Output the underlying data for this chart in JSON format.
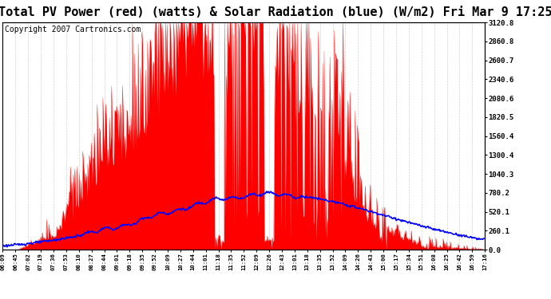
{
  "title": "Total PV Power (red) (watts) & Solar Radiation (blue) (W/m2) Fri Mar 9 17:25",
  "copyright": "Copyright 2007 Cartronics.com",
  "y_max": 3120.8,
  "y_min": 0.0,
  "y_ticks": [
    0.0,
    260.1,
    520.1,
    780.2,
    1040.3,
    1300.4,
    1560.4,
    1820.5,
    2080.6,
    2340.6,
    2600.7,
    2860.8,
    3120.8
  ],
  "x_labels": [
    "06:09",
    "06:45",
    "07:02",
    "07:19",
    "07:36",
    "07:53",
    "08:10",
    "08:27",
    "08:44",
    "09:01",
    "09:18",
    "09:35",
    "09:52",
    "10:09",
    "10:27",
    "10:44",
    "11:01",
    "11:18",
    "11:35",
    "11:52",
    "12:09",
    "12:26",
    "12:43",
    "13:01",
    "13:18",
    "13:35",
    "13:52",
    "14:09",
    "14:26",
    "14:43",
    "15:00",
    "15:17",
    "15:34",
    "15:51",
    "16:08",
    "16:25",
    "16:42",
    "16:59",
    "17:16"
  ],
  "bg_color": "#ffffff",
  "plot_bg_color": "#ffffff",
  "red_color": "#ff0000",
  "blue_color": "#0000ff",
  "grid_color": "#cccccc",
  "title_fontsize": 11,
  "copyright_fontsize": 7
}
